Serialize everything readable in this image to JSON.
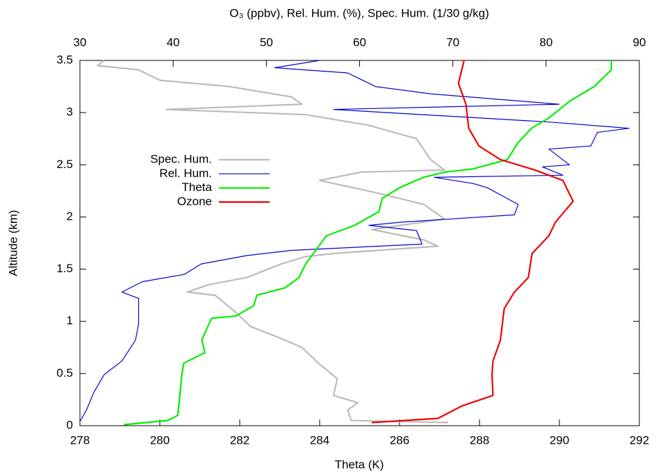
{
  "chart_data": {
    "type": "profile",
    "xlabel": "Theta (K)",
    "x2label": "O₃ (ppbv), Rel. Hum. (%), Spec. Hum. (1/30 g/kg)",
    "ylabel": "Altitude (km)",
    "xlim": [
      278,
      292
    ],
    "xticks": [
      278,
      280,
      282,
      284,
      286,
      288,
      290,
      292
    ],
    "x2lim": [
      30,
      90
    ],
    "x2ticks": [
      30,
      40,
      50,
      60,
      70,
      80,
      90
    ],
    "ylim": [
      0,
      3.5
    ],
    "yticks": [
      0,
      0.5,
      1,
      1.5,
      2,
      2.5,
      3,
      3.5
    ],
    "legend": "left",
    "series": [
      {
        "name": "Spec. Hum.",
        "color": "#bbbbbb",
        "axis": "x2",
        "x": [
          69.5,
          59.1,
          58.7,
          59.8,
          57.2,
          57.6,
          55.7,
          53.8,
          51.2,
          48.3,
          46.8,
          44.5,
          41.5,
          43.8,
          47.9,
          51.6,
          54.2,
          57.2,
          68.4,
          66.9,
          61.3,
          69.1,
          66.9,
          62.4,
          55.7,
          60.2,
          69.1,
          67.6,
          66.1,
          60.9,
          54.2,
          39.3,
          53.8,
          52.7,
          46.0,
          38.6,
          36.3,
          31.9,
          32.6
        ],
        "y": [
          0.03,
          0.05,
          0.15,
          0.22,
          0.29,
          0.45,
          0.59,
          0.75,
          0.85,
          0.95,
          1.08,
          1.25,
          1.28,
          1.35,
          1.42,
          1.55,
          1.62,
          1.65,
          1.72,
          1.78,
          1.88,
          1.98,
          2.12,
          2.22,
          2.35,
          2.43,
          2.45,
          2.55,
          2.75,
          2.88,
          2.98,
          3.03,
          3.08,
          3.15,
          3.25,
          3.31,
          3.41,
          3.45,
          3.5
        ]
      },
      {
        "name": "Rel. Hum.",
        "color": "#0000cc",
        "axis": "x2",
        "x": [
          30,
          30.7,
          31.5,
          32.6,
          34.5,
          35.96,
          36.3,
          36.3,
          34.5,
          36.7,
          41.2,
          43.0,
          47.9,
          52.7,
          66.7,
          66.1,
          61.0,
          64.5,
          76.6,
          77.0,
          73.7,
          72.2,
          68.0,
          81.8,
          79.6,
          82.5,
          80.3,
          84.8,
          85.5,
          88.9,
          80.3,
          57.2,
          81.4,
          67.6,
          61.7,
          58.7,
          50.9,
          55.7
        ],
        "y": [
          0.04,
          0.15,
          0.32,
          0.49,
          0.62,
          0.82,
          0.98,
          1.22,
          1.28,
          1.38,
          1.45,
          1.55,
          1.63,
          1.68,
          1.74,
          1.87,
          1.92,
          1.95,
          2.02,
          2.12,
          2.28,
          2.32,
          2.38,
          2.4,
          2.48,
          2.5,
          2.65,
          2.68,
          2.81,
          2.85,
          2.91,
          3.03,
          3.08,
          3.18,
          3.25,
          3.38,
          3.43,
          3.5
        ]
      },
      {
        "name": "Theta",
        "color": "#00ee00",
        "axis": "x",
        "x": [
          279.1,
          280.2,
          280.45,
          280.5,
          280.55,
          280.6,
          281.13,
          281.05,
          281.2,
          281.3,
          281.9,
          282.35,
          282.43,
          283.13,
          283.48,
          283.65,
          283.9,
          284.17,
          284.87,
          285.48,
          285.57,
          286.0,
          286.6,
          287.13,
          287.83,
          288.7,
          288.96,
          289.3,
          289.74,
          290.26,
          290.87,
          291.3,
          291.3
        ],
        "y": [
          0.01,
          0.05,
          0.1,
          0.29,
          0.49,
          0.6,
          0.7,
          0.82,
          0.95,
          1.03,
          1.05,
          1.15,
          1.25,
          1.32,
          1.42,
          1.55,
          1.68,
          1.82,
          1.92,
          2.05,
          2.18,
          2.28,
          2.38,
          2.43,
          2.46,
          2.55,
          2.71,
          2.85,
          2.95,
          3.11,
          3.25,
          3.41,
          3.5
        ]
      },
      {
        "name": "Ozone",
        "color": "#ee0000",
        "axis": "x2",
        "x": [
          61.3,
          68.4,
          71.0,
          74.3,
          74.2,
          74.3,
          75.1,
          75.5,
          76.6,
          78.1,
          78.5,
          80.3,
          81.0,
          82.9,
          81.8,
          78.8,
          75.1,
          72.8,
          71.7,
          71.4,
          70.6,
          71.2
        ],
        "y": [
          0.03,
          0.07,
          0.19,
          0.29,
          0.49,
          0.62,
          0.82,
          1.12,
          1.28,
          1.42,
          1.65,
          1.82,
          1.95,
          2.15,
          2.35,
          2.45,
          2.55,
          2.68,
          2.85,
          3.08,
          3.28,
          3.5
        ]
      }
    ]
  }
}
